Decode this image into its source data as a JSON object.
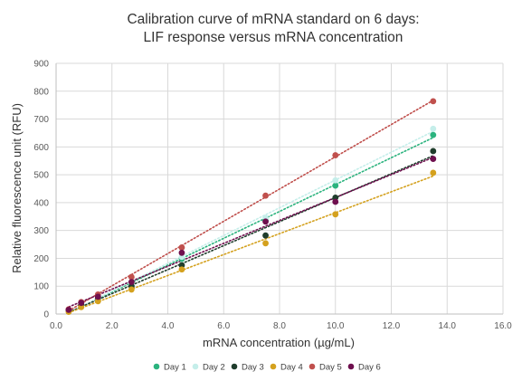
{
  "chart_data": {
    "type": "scatter",
    "title_lines": [
      "Calibration curve of mRNA standard on 6 days:",
      "LIF response versus mRNA concentration"
    ],
    "xlabel": "mRNA concentration (µg/mL)",
    "ylabel": "Relative fluorescence unit (RFU)",
    "xlim": [
      0,
      16
    ],
    "ylim": [
      0,
      900
    ],
    "xticks": [
      0,
      2,
      4,
      6,
      8,
      10,
      12,
      14,
      16
    ],
    "xtick_labels": [
      "0.0",
      "2.0",
      "4.0",
      "6.0",
      "8.0",
      "10.0",
      "12.0",
      "14.0",
      "16.0"
    ],
    "yticks": [
      0,
      100,
      200,
      300,
      400,
      500,
      600,
      700,
      800,
      900
    ],
    "ytick_labels": [
      "0",
      "100",
      "200",
      "300",
      "400",
      "500",
      "600",
      "700",
      "800",
      "900"
    ],
    "grid": true,
    "legend_position": "bottom",
    "trendline": "linear, dotted",
    "x": [
      0.45,
      0.9,
      1.5,
      2.7,
      4.5,
      7.5,
      10.0,
      13.5
    ],
    "series": [
      {
        "name": "Day 1",
        "color": "#2bb37e",
        "values": [
          13,
          32,
          55,
          103,
          198,
          335,
          461,
          643
        ]
      },
      {
        "name": "Day 2",
        "color": "#c5eeea",
        "values": [
          14,
          34,
          57,
          107,
          205,
          345,
          480,
          665
        ]
      },
      {
        "name": "Day 3",
        "color": "#1f3d2c",
        "values": [
          14,
          33,
          58,
          100,
          175,
          282,
          418,
          585
        ]
      },
      {
        "name": "Day 4",
        "color": "#d4a11e",
        "values": [
          8,
          25,
          46,
          88,
          160,
          254,
          358,
          507
        ]
      },
      {
        "name": "Day 5",
        "color": "#c0504d",
        "values": [
          17,
          43,
          70,
          133,
          239,
          425,
          570,
          764
        ]
      },
      {
        "name": "Day 6",
        "color": "#6e0f4e",
        "values": [
          15,
          40,
          62,
          115,
          220,
          332,
          403,
          557
        ]
      }
    ]
  }
}
